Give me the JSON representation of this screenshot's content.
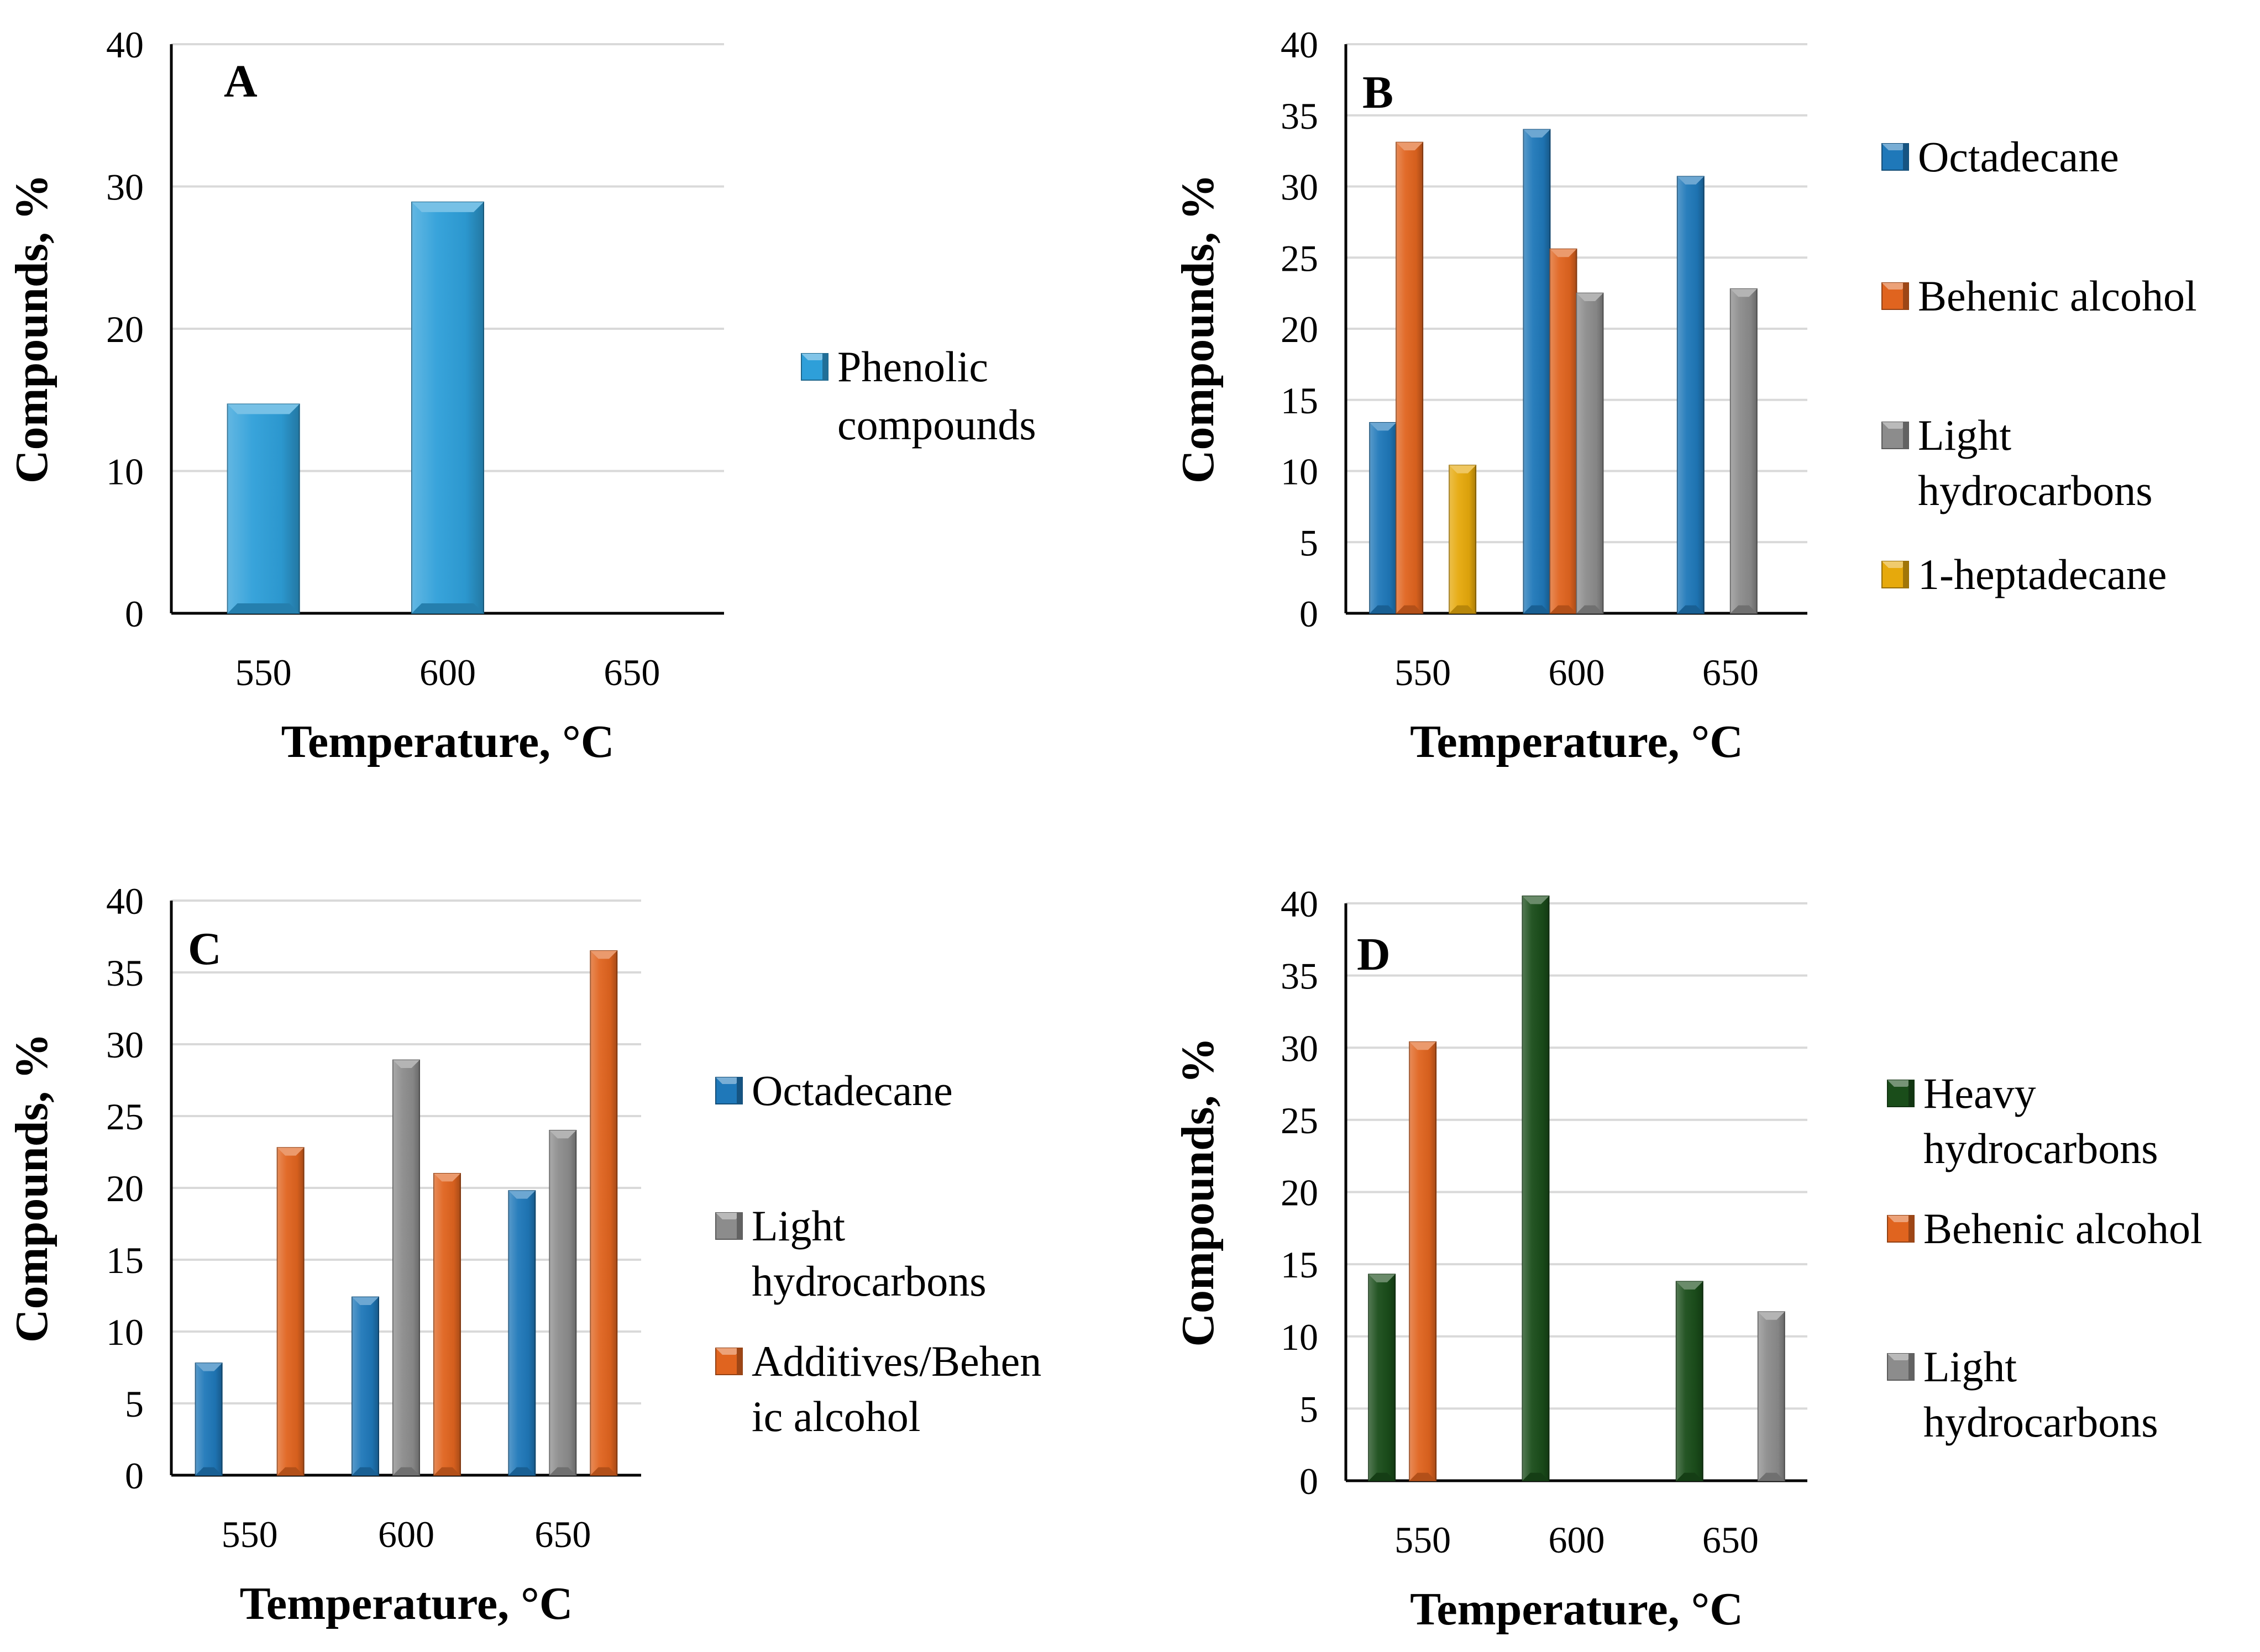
{
  "colors": {
    "Phenolic compounds": "#2e9fd9",
    "Octadecane": "#1f78b9",
    "Behenic alcohol": "#e0641f",
    "Additives/Behenic alcohol": "#e0641f",
    "Light hydrocarbons": "#8c8c8c",
    "1-heptadecane": "#e6a90c",
    "Heavy hydrocarbons": "#1a4d1a"
  },
  "chart_data": [
    {
      "panel": "A",
      "type": "bar",
      "title": "A",
      "xlabel": "Temperature, °C",
      "ylabel": "Compounds, %",
      "categories": [
        "550",
        "600",
        "650"
      ],
      "ylim": [
        0,
        40
      ],
      "yticks": [
        0,
        10,
        20,
        30,
        40
      ],
      "grid": true,
      "series": [
        {
          "name": "Phenolic compounds",
          "legend_lines": [
            "Phenolic",
            "compounds"
          ],
          "values": [
            14.7,
            28.9,
            null
          ]
        }
      ]
    },
    {
      "panel": "B",
      "type": "bar",
      "title": "B",
      "xlabel": "Temperature, °C",
      "ylabel": "Compounds, %",
      "categories": [
        "550",
        "600",
        "650"
      ],
      "ylim": [
        0,
        40
      ],
      "yticks": [
        0,
        5,
        10,
        15,
        20,
        25,
        30,
        35,
        40
      ],
      "grid": true,
      "series": [
        {
          "name": "Octadecane",
          "legend_lines": [
            "Octadecane"
          ],
          "values": [
            13.4,
            34.0,
            30.7
          ]
        },
        {
          "name": "Behenic alcohol",
          "legend_lines": [
            "Behenic alcohol"
          ],
          "values": [
            33.1,
            25.6,
            null
          ]
        },
        {
          "name": "Light hydrocarbons",
          "legend_lines": [
            "Light",
            "hydrocarbons"
          ],
          "values": [
            null,
            22.5,
            22.8
          ]
        },
        {
          "name": "1-heptadecane",
          "legend_lines": [
            "1-heptadecane"
          ],
          "values": [
            10.4,
            null,
            null
          ]
        }
      ]
    },
    {
      "panel": "C",
      "type": "bar",
      "title": "C",
      "xlabel": "Temperature, °C",
      "ylabel": "Compounds, %",
      "categories": [
        "550",
        "600",
        "650"
      ],
      "ylim": [
        0,
        40
      ],
      "yticks": [
        0,
        5,
        10,
        15,
        20,
        25,
        30,
        35,
        40
      ],
      "grid": true,
      "series": [
        {
          "name": "Octadecane",
          "legend_lines": [
            "Octadecane"
          ],
          "values": [
            7.8,
            12.4,
            19.8
          ]
        },
        {
          "name": "Light hydrocarbons",
          "legend_lines": [
            "Light",
            "hydrocarbons"
          ],
          "values": [
            null,
            28.9,
            24.0
          ]
        },
        {
          "name": "Additives/Behenic alcohol",
          "legend_lines": [
            "Additives/Behen",
            "ic alcohol"
          ],
          "values": [
            22.8,
            21.0,
            36.5
          ]
        }
      ]
    },
    {
      "panel": "D",
      "type": "bar",
      "title": "D",
      "xlabel": "Temperature, °C",
      "ylabel": "Compounds, %",
      "categories": [
        "550",
        "600",
        "650"
      ],
      "ylim": [
        0,
        40
      ],
      "yticks": [
        0,
        5,
        10,
        15,
        20,
        25,
        30,
        35,
        40
      ],
      "grid": true,
      "series": [
        {
          "name": "Heavy hydrocarbons",
          "legend_lines": [
            "Heavy",
            "hydrocarbons"
          ],
          "values": [
            14.3,
            40.5,
            13.8
          ]
        },
        {
          "name": "Behenic alcohol",
          "legend_lines": [
            "Behenic alcohol"
          ],
          "values": [
            30.4,
            null,
            null
          ]
        },
        {
          "name": "Light hydrocarbons",
          "legend_lines": [
            "Light",
            "hydrocarbons"
          ],
          "values": [
            null,
            null,
            11.7
          ]
        }
      ]
    }
  ]
}
